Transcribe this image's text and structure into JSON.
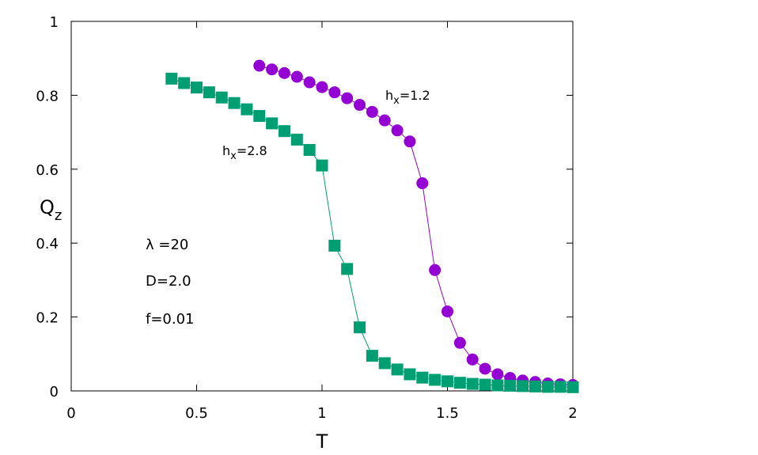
{
  "chart_data": {
    "type": "scatter",
    "xlabel": "T",
    "ylabel_main": "Q",
    "ylabel_sub": "z",
    "xlim": [
      0,
      2
    ],
    "ylim": [
      0,
      1
    ],
    "x_ticks": [
      0,
      0.5,
      1,
      1.5,
      2
    ],
    "x_tick_labels": [
      "0",
      "0.5",
      "1",
      "1.5",
      "2"
    ],
    "y_ticks": [
      0,
      0.2,
      0.4,
      0.6,
      0.8,
      1
    ],
    "y_tick_labels": [
      "0",
      "0.2",
      "0.4",
      "0.6",
      "0.8",
      "1"
    ],
    "grid": false,
    "annotations": [
      "λ =20",
      "D=2.0",
      "f=0.01"
    ],
    "series": [
      {
        "name_main": "h",
        "name_sub": "x",
        "name_tail": "=1.2",
        "marker": "circle",
        "color": "#9400d3",
        "x": [
          0.75,
          0.8,
          0.85,
          0.9,
          0.95,
          1.0,
          1.05,
          1.1,
          1.15,
          1.2,
          1.25,
          1.3,
          1.35,
          1.4,
          1.45,
          1.5,
          1.55,
          1.6,
          1.65,
          1.7,
          1.75,
          1.8,
          1.85,
          1.9,
          1.95,
          2.0
        ],
        "y": [
          0.88,
          0.87,
          0.86,
          0.85,
          0.835,
          0.822,
          0.808,
          0.792,
          0.774,
          0.755,
          0.732,
          0.705,
          0.675,
          0.562,
          0.327,
          0.215,
          0.13,
          0.085,
          0.06,
          0.045,
          0.035,
          0.028,
          0.024,
          0.02,
          0.018,
          0.016
        ]
      },
      {
        "name_main": "h",
        "name_sub": "x",
        "name_tail": "=2.8",
        "marker": "square",
        "color": "#009e73",
        "x": [
          0.4,
          0.45,
          0.5,
          0.55,
          0.6,
          0.65,
          0.7,
          0.75,
          0.8,
          0.85,
          0.9,
          0.95,
          1.0,
          1.05,
          1.1,
          1.15,
          1.2,
          1.25,
          1.3,
          1.35,
          1.4,
          1.45,
          1.5,
          1.55,
          1.6,
          1.65,
          1.7,
          1.75,
          1.8,
          1.85,
          1.9,
          1.95,
          2.0
        ],
        "y": [
          0.845,
          0.833,
          0.821,
          0.808,
          0.794,
          0.779,
          0.762,
          0.744,
          0.724,
          0.703,
          0.68,
          0.652,
          0.61,
          0.393,
          0.33,
          0.172,
          0.095,
          0.075,
          0.058,
          0.045,
          0.036,
          0.03,
          0.026,
          0.022,
          0.019,
          0.017,
          0.015,
          0.014,
          0.013,
          0.012,
          0.011,
          0.011,
          0.01
        ]
      }
    ]
  }
}
